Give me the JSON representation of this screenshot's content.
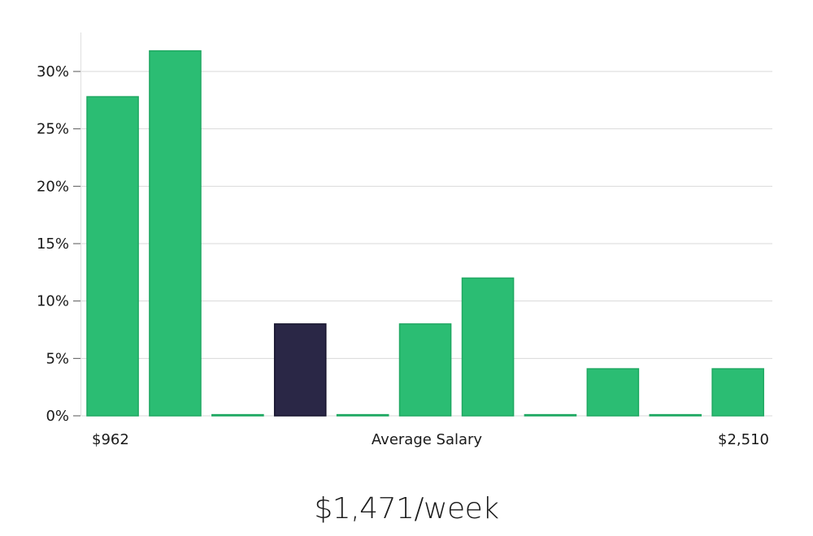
{
  "chart_data": {
    "type": "bar",
    "title": "",
    "xlabel": "Average Salary",
    "ylabel": "",
    "x_min_label": "$962",
    "x_max_label": "$2,510",
    "ylim": [
      0,
      33
    ],
    "yticks": [
      0,
      5,
      10,
      15,
      20,
      25,
      30
    ],
    "ytick_labels": [
      "0%",
      "5%",
      "10%",
      "15%",
      "20%",
      "25%",
      "30%"
    ],
    "values": [
      27.8,
      31.8,
      0.1,
      8.0,
      0.1,
      8.0,
      12.0,
      0.1,
      4.1,
      0.1,
      4.1
    ],
    "highlight_index": 3,
    "grid": true,
    "colors": {
      "bar": "#2bbd73",
      "bar_edge": "#1fa862",
      "highlight": "#2a2746",
      "highlight_edge": "#17152e",
      "grid": "#d9d9d9"
    }
  },
  "headline": "$1,471/week"
}
